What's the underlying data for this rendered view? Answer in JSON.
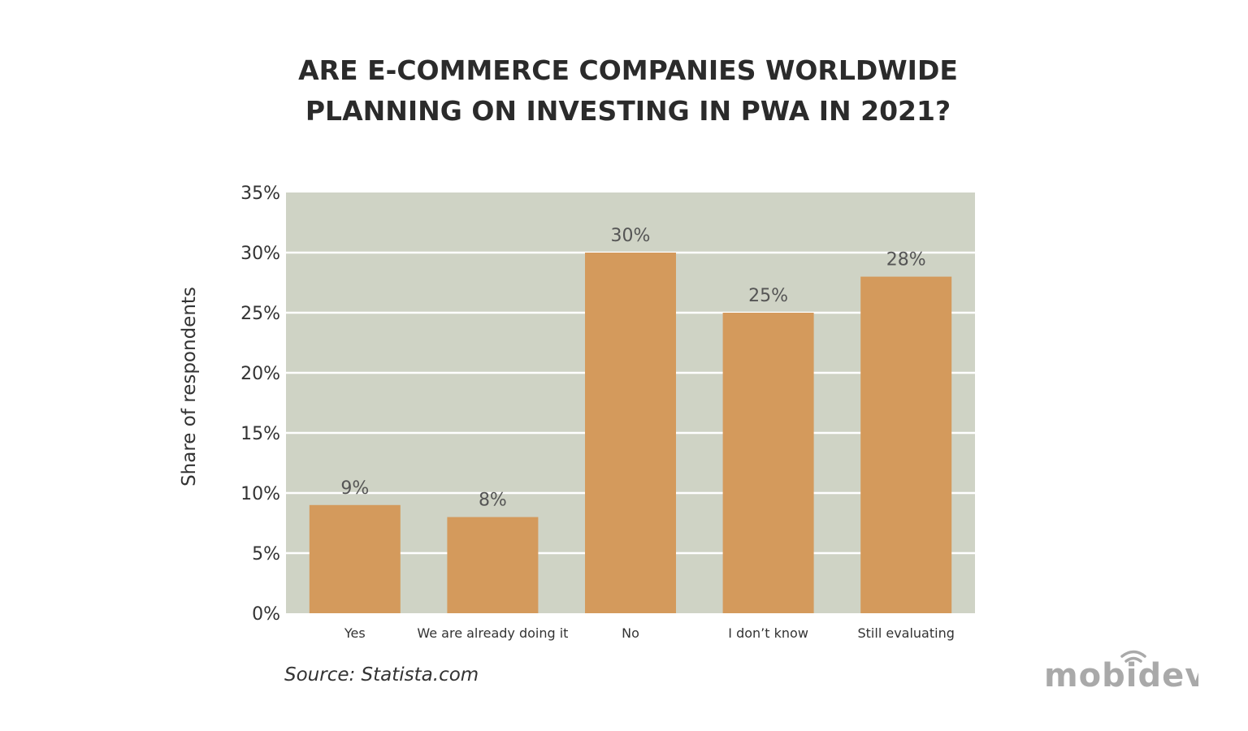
{
  "chart_data": {
    "type": "bar",
    "title": [
      "ARE E-COMMERCE COMPANIES WORLDWIDE",
      "PLANNING ON INVESTING IN PWA IN 2021?"
    ],
    "xlabel": "",
    "ylabel": "Share of respondents",
    "categories": [
      "Yes",
      "We are already doing it",
      "No",
      "I don’t know",
      "Still evaluating"
    ],
    "values": [
      9,
      8,
      30,
      25,
      28
    ],
    "data_labels": [
      "9%",
      "8%",
      "30%",
      "25%",
      "28%"
    ],
    "ylim": [
      0,
      35
    ],
    "yticks": [
      0,
      5,
      10,
      15,
      20,
      25,
      30,
      35
    ],
    "ytick_labels": [
      "0%",
      "5%",
      "10%",
      "15%",
      "20%",
      "25%",
      "30%",
      "35%"
    ],
    "grid": true,
    "colors": {
      "bar": "#D49A5C",
      "plot_background": "#CFD3C5",
      "grid": "#FFFFFF"
    }
  },
  "source": "Source: Statista.com",
  "logo": "mobidev"
}
